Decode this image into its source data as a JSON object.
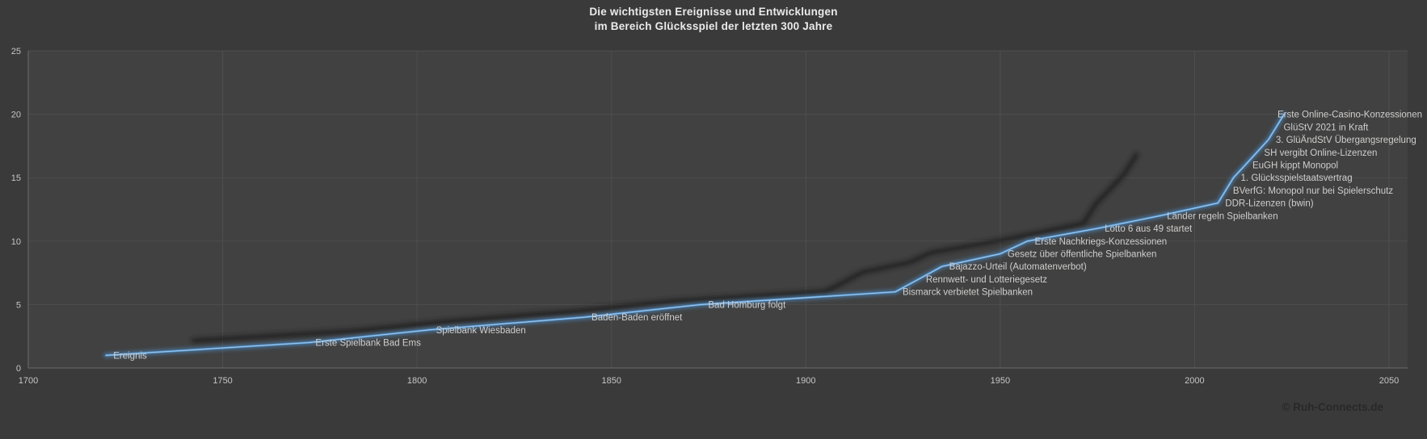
{
  "chart_data": {
    "type": "line",
    "title_line1": "Die wichtigsten Ereignisse und Entwicklungen",
    "title_line2": "im Bereich Glücksspiel der letzten 300 Jahre",
    "series_name": "Ereignis",
    "legend_position": "none",
    "grid": true,
    "x_axis": {
      "min": 1700,
      "max": 2050,
      "ticks": [
        1700,
        1750,
        1800,
        1850,
        1900,
        1950,
        2000,
        2050
      ]
    },
    "y_axis": {
      "min": 0,
      "max": 25,
      "ticks": [
        0,
        5,
        10,
        15,
        20,
        25
      ]
    },
    "events": [
      {
        "label": "Ereignis",
        "year": 1720,
        "value": 1
      },
      {
        "label": "Erste Spielbank Bad Ems",
        "year": 1772,
        "value": 2
      },
      {
        "label": "Spielbank Wiesbaden",
        "year": 1803,
        "value": 3
      },
      {
        "label": "Baden-Baden eröffnet",
        "year": 1843,
        "value": 4
      },
      {
        "label": "Bad Homburg folgt",
        "year": 1873,
        "value": 5
      },
      {
        "label": "Bismarck verbietet Spielbanken",
        "year": 1923,
        "value": 6
      },
      {
        "label": "Rennwett- und Lotteriegesetz",
        "year": 1929,
        "value": 7
      },
      {
        "label": "Bajazzo-Urteil (Automatenverbot)",
        "year": 1935,
        "value": 8
      },
      {
        "label": "Gesetz über öffentliche Spielbanken",
        "year": 1950,
        "value": 9
      },
      {
        "label": "Erste Nachkriegs-Konzessionen",
        "year": 1957,
        "value": 10
      },
      {
        "label": "Lotto 6 aus 49 startet",
        "year": 1975,
        "value": 11
      },
      {
        "label": "Länder regeln Spielbanken",
        "year": 1991,
        "value": 12
      },
      {
        "label": "DDR-Lizenzen (bwin)",
        "year": 2006,
        "value": 13
      },
      {
        "label": "BVerfG: Monopol nur bei Spielerschutz",
        "year": 2008,
        "value": 14
      },
      {
        "label": "1. Glücksspielstaatsvertrag",
        "year": 2010,
        "value": 15
      },
      {
        "label": "EuGH kippt Monopol",
        "year": 2013,
        "value": 16
      },
      {
        "label": "SH vergibt Online-Lizenzen",
        "year": 2016,
        "value": 17
      },
      {
        "label": "3. GlüÄndStV Übergangsregelung",
        "year": 2019,
        "value": 18
      },
      {
        "label": "GlüStV 2021 in Kraft",
        "year": 2021,
        "value": 19
      },
      {
        "label": "Erste Online-Casino-Konzessionen",
        "year": 2023,
        "value": 20
      }
    ]
  },
  "footer": {
    "copyright": "© Ruh-Connects.de"
  },
  "colors": {
    "background": "#3a3a3a",
    "plot_background": "#414141",
    "gridline": "#4e4e4e",
    "axis_line": "#6b6b6b",
    "tick_label": "#c6c6c6",
    "data_label": "#d0cecd",
    "title": "#eaeaea",
    "line": "#5b9bd5",
    "line_glow": "#4e8ec9",
    "line_core": "#aacfee",
    "shadow": "#1e1e1e",
    "copyright": "#282828"
  }
}
